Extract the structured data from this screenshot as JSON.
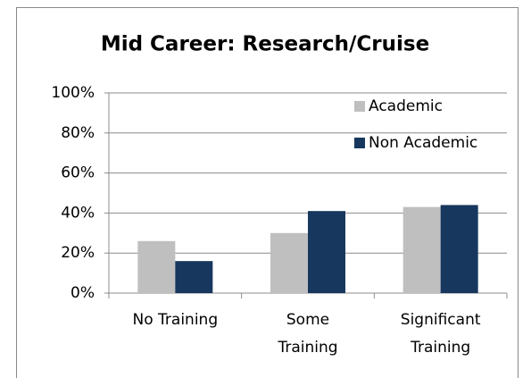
{
  "chart_data": {
    "type": "bar",
    "title": "Mid Career: Research/Cruise",
    "categories": [
      [
        "No Training"
      ],
      [
        "Some",
        "Training"
      ],
      [
        "Significant",
        "Training"
      ]
    ],
    "series": [
      {
        "name": "Academic",
        "color": "#bfbfbf",
        "values": [
          26,
          30,
          43
        ]
      },
      {
        "name": "Non Academic",
        "color": "#17375e",
        "values": [
          16,
          41,
          44
        ]
      }
    ],
    "ylim": [
      0,
      100
    ],
    "yticks": [
      {
        "value": 0,
        "label": "0%"
      },
      {
        "value": 20,
        "label": "20%"
      },
      {
        "value": 40,
        "label": "40%"
      },
      {
        "value": 60,
        "label": "60%"
      },
      {
        "value": 80,
        "label": "80%"
      },
      {
        "value": 100,
        "label": "100%"
      }
    ],
    "grid": true,
    "legend": "top-right"
  }
}
